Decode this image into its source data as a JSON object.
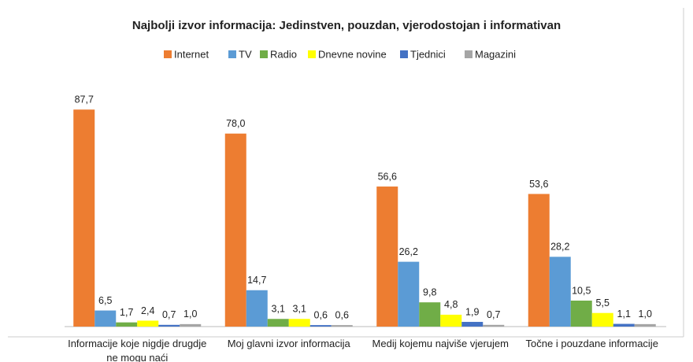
{
  "chart_data": {
    "type": "bar",
    "title": "Najbolji izvor informacija: Jedinstven, pouzdan, vjerodostojan i informativan",
    "categories": [
      "Informacije koje nigdje drugdje ne mogu naći",
      "Moj glavni izvor informacija",
      "Medij kojemu najviše vjerujem",
      "Točne i pouzdane informacije"
    ],
    "series": [
      {
        "name": "Internet",
        "color": "#ed7d31",
        "values": [
          87.7,
          78.0,
          56.6,
          53.6
        ],
        "value_labels": [
          "87,7",
          "78,0",
          "56,6",
          "53,6"
        ]
      },
      {
        "name": "TV",
        "color": "#5b9bd5",
        "values": [
          6.5,
          14.7,
          26.2,
          28.2
        ],
        "value_labels": [
          "6,5",
          "14,7",
          "26,2",
          "28,2"
        ]
      },
      {
        "name": "Radio",
        "color": "#70ad47",
        "values": [
          1.7,
          3.1,
          9.8,
          10.5
        ],
        "value_labels": [
          "1,7",
          "3,1",
          "9,8",
          "10,5"
        ]
      },
      {
        "name": "Dnevne novine",
        "color": "#ffff00",
        "values": [
          2.4,
          3.1,
          4.8,
          5.5
        ],
        "value_labels": [
          "2,4",
          "3,1",
          "4,8",
          "5,5"
        ]
      },
      {
        "name": "Tjednici",
        "color": "#4472c4",
        "values": [
          0.7,
          0.6,
          1.9,
          1.1
        ],
        "value_labels": [
          "0,7",
          "0,6",
          "1,9",
          "1,1"
        ]
      },
      {
        "name": "Magazini",
        "color": "#a5a5a5",
        "values": [
          1.0,
          0.6,
          0.7,
          1.0
        ],
        "value_labels": [
          "1,0",
          "0,6",
          "0,7",
          "1,0"
        ]
      }
    ],
    "ylim": [
      0,
      90
    ]
  }
}
